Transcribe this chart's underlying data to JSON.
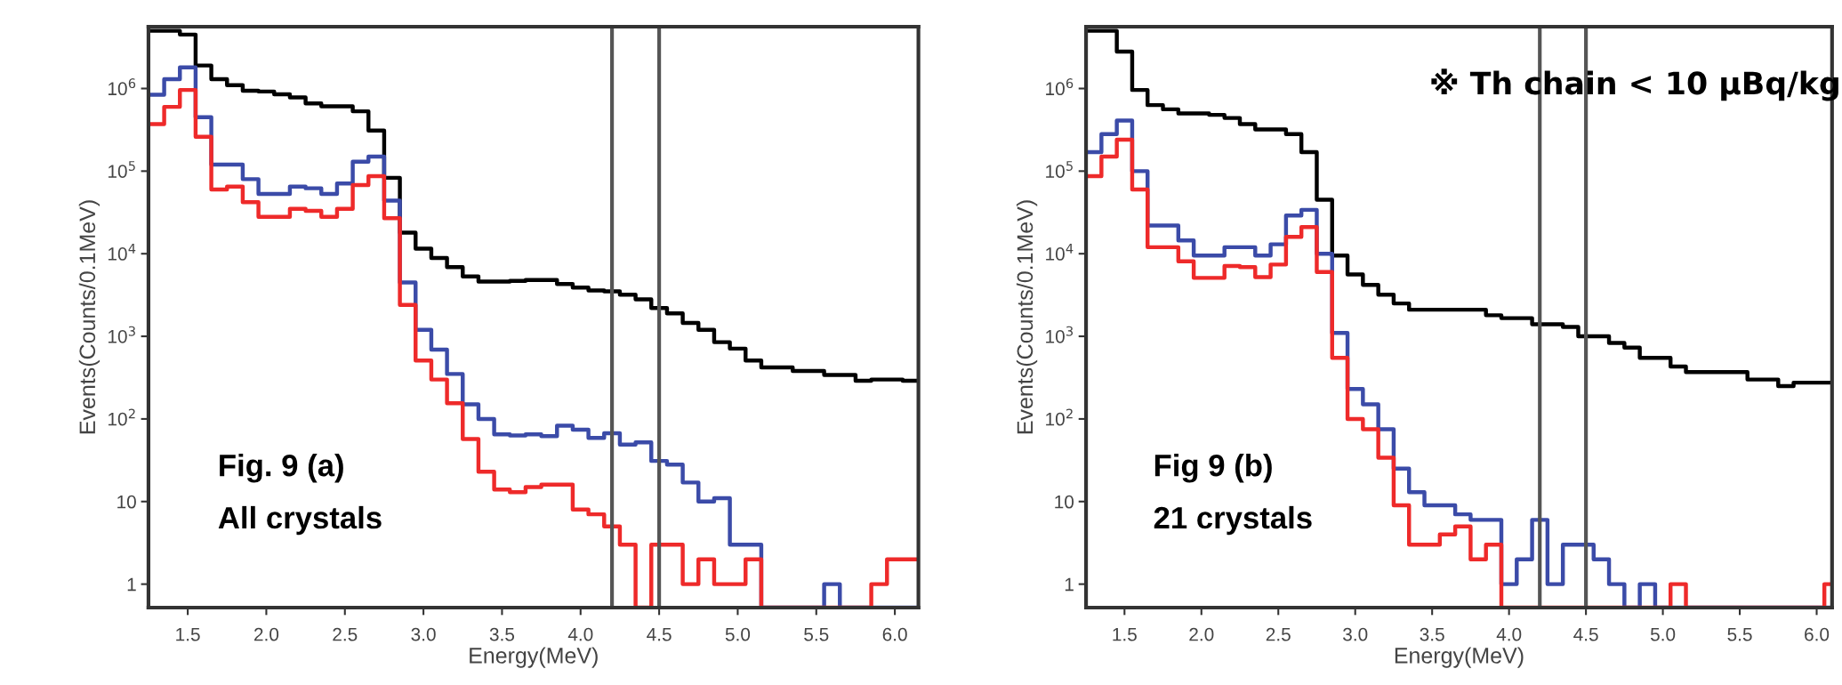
{
  "chart_data": [
    {
      "type": "histogram",
      "xlabel": "Energy(MeV)",
      "ylabel": "Events(Counts/0.1MeV)",
      "log": "y",
      "grid": false,
      "bins": [
        1.25,
        1.35,
        1.45,
        1.55,
        1.65,
        1.75,
        1.85,
        1.95,
        2.05,
        2.15,
        2.25,
        2.35,
        2.45,
        2.55,
        2.65,
        2.75,
        2.85,
        2.95,
        3.05,
        3.15,
        3.25,
        3.35,
        3.45,
        3.55,
        3.65,
        3.75,
        3.85,
        3.95,
        4.05,
        4.15,
        4.25,
        4.35,
        4.45,
        4.55,
        4.65,
        4.75,
        4.85,
        4.95,
        5.05,
        5.15,
        5.25,
        5.35,
        5.45,
        5.55,
        5.65,
        5.75,
        5.85,
        5.95,
        6.05,
        6.15
      ],
      "series": [
        {
          "color": "#000000",
          "values": [
            5000000.0,
            5000000.0,
            4500000.0,
            1900000.0,
            1300000.0,
            1100000.0,
            940000.0,
            920000.0,
            850000.0,
            780000.0,
            660000.0,
            610000.0,
            610000.0,
            530000.0,
            310000.0,
            83000.0,
            18000.0,
            11500.0,
            8900.0,
            6900.0,
            5300.0,
            4600.0,
            4600.0,
            4700.0,
            4800.0,
            4800.0,
            4300.0,
            3900.0,
            3600.0,
            3500.0,
            3200.0,
            2800.0,
            2200.0,
            1900.0,
            1450.0,
            1200.0,
            850,
            710,
            510,
            420,
            420,
            380,
            380,
            340,
            340,
            290,
            300,
            300,
            290
          ]
        },
        {
          "color": "#3b4ba8",
          "values": [
            840000.0,
            1300000.0,
            1800000.0,
            450000.0,
            120000.0,
            120000.0,
            80000.0,
            53000.0,
            53000.0,
            65000.0,
            62000.0,
            53000.0,
            71000.0,
            130000.0,
            150000.0,
            44000.0,
            4500.0,
            1200.0,
            690,
            350,
            150,
            100,
            65,
            63,
            65,
            62,
            83,
            74,
            59,
            67,
            49,
            52,
            31,
            28,
            17,
            10,
            11,
            3,
            3,
            null,
            null,
            null,
            null,
            1,
            null,
            null,
            null,
            null,
            null
          ]
        },
        {
          "color": "#ee2a2a",
          "values": [
            370000.0,
            600000.0,
            960000.0,
            260000.0,
            60000.0,
            65000.0,
            42000.0,
            28000.0,
            28000.0,
            35000.0,
            33000.0,
            28000.0,
            35000.0,
            68000.0,
            87000.0,
            27000.0,
            2400.0,
            510,
            300,
            155,
            57,
            23,
            14,
            13,
            15,
            16,
            16,
            8,
            7,
            5,
            3,
            null,
            3,
            3,
            1,
            2,
            1,
            1,
            2,
            null,
            null,
            null,
            null,
            null,
            null,
            null,
            1,
            2,
            2
          ]
        }
      ],
      "xlim": [
        1.25,
        6.15
      ],
      "xticks": [
        1.5,
        {
          "value": 2,
          "label": "2.0"
        },
        2.5,
        {
          "value": 3,
          "label": "3.0"
        },
        3.5,
        {
          "value": 4,
          "label": "4.0"
        },
        4.5,
        {
          "value": 5,
          "label": "5.0"
        },
        5.5,
        {
          "value": 6,
          "label": "6.0"
        }
      ],
      "ylim": [
        0.52,
        5600000.0
      ],
      "yticks": [
        1,
        10,
        {
          "value": 100,
          "label": "10$^{2}$"
        },
        {
          "value": 1000,
          "label": "10$^{3}$"
        },
        {
          "value": 10000,
          "label": "10$^{4}$"
        },
        {
          "value": 100000,
          "label": "10$^{5}$"
        },
        {
          "value": 1000000,
          "label": "10$^{6}$"
        }
      ],
      "ref_lines": [
        {
          "axis": "x",
          "value": 4.2,
          "color": "#555555"
        },
        {
          "axis": "x",
          "value": 4.5,
          "color": "#555555"
        }
      ],
      "annotations": [
        "Fig. 9 (a)",
        "All crystals"
      ]
    },
    {
      "type": "histogram",
      "xlabel": "Energy(MeV)",
      "ylabel": "Events(Counts/0.1MeV)",
      "log": "y",
      "grid": false,
      "bins": [
        1.25,
        1.35,
        1.45,
        1.55,
        1.65,
        1.75,
        1.85,
        1.95,
        2.05,
        2.15,
        2.25,
        2.35,
        2.45,
        2.55,
        2.65,
        2.75,
        2.85,
        2.95,
        3.05,
        3.15,
        3.25,
        3.35,
        3.45,
        3.55,
        3.65,
        3.75,
        3.85,
        3.95,
        4.05,
        4.15,
        4.25,
        4.35,
        4.45,
        4.55,
        4.65,
        4.75,
        4.85,
        4.95,
        5.05,
        5.15,
        5.25,
        5.35,
        5.45,
        5.55,
        5.65,
        5.75,
        5.85,
        5.95,
        6.05,
        6.15
      ],
      "series": [
        {
          "color": "#000000",
          "values": [
            5000000.0,
            5000000.0,
            2800000.0,
            960000.0,
            630000.0,
            560000.0,
            500000.0,
            500000.0,
            480000.0,
            440000.0,
            370000.0,
            320000.0,
            320000.0,
            280000.0,
            170000.0,
            45000.0,
            9500.0,
            5600.0,
            4200.0,
            3200.0,
            2500.0,
            2100.0,
            2100.0,
            2100.0,
            2100.0,
            2100.0,
            1800.0,
            1660.0,
            1660.0,
            1400.0,
            1400.0,
            1300.0,
            1000.0,
            1000.0,
            830,
            730,
            550,
            550,
            430,
            370,
            370,
            370,
            370,
            300,
            300,
            250,
            275,
            275,
            275
          ]
        },
        {
          "color": "#3b4ba8",
          "values": [
            170000.0,
            280000.0,
            410000.0,
            100000.0,
            22000.0,
            22000.0,
            14500.0,
            9500.0,
            9500.0,
            12000.0,
            12000.0,
            9500.0,
            13000.0,
            29000.0,
            34000.0,
            10000.0,
            1100.0,
            230,
            150,
            75,
            25,
            13,
            9,
            9,
            7,
            6,
            6,
            1,
            2,
            6,
            1,
            3,
            3,
            2,
            1,
            null,
            1,
            null,
            null,
            null,
            null,
            null,
            null,
            null,
            null,
            null,
            null,
            null,
            null
          ]
        },
        {
          "color": "#ee2a2a",
          "values": [
            87000.0,
            150000.0,
            240000.0,
            60000.0,
            12000.0,
            12000.0,
            8100.0,
            5100.0,
            5100.0,
            7100.0,
            6900.0,
            5200.0,
            7400.0,
            16000.0,
            21000.0,
            6000.0,
            550,
            100,
            75,
            34,
            9,
            3,
            3,
            4,
            5,
            2,
            3,
            null,
            null,
            null,
            null,
            null,
            null,
            null,
            null,
            null,
            null,
            null,
            1,
            null,
            null,
            null,
            null,
            null,
            null,
            null,
            null,
            null,
            1
          ]
        }
      ],
      "xlim": [
        1.25,
        6.1
      ],
      "xticks": [
        1.5,
        {
          "value": 2,
          "label": "2.0"
        },
        2.5,
        {
          "value": 3,
          "label": "3.0"
        },
        3.5,
        {
          "value": 4,
          "label": "4.0"
        },
        4.5,
        {
          "value": 5,
          "label": "5.0"
        },
        5.5,
        {
          "value": 6,
          "label": "6.0"
        }
      ],
      "ylim": [
        0.52,
        5600000.0
      ],
      "yticks": [
        1,
        10,
        {
          "value": 100,
          "label": "10$^{2}$"
        },
        {
          "value": 1000,
          "label": "10$^{3}$"
        },
        {
          "value": 10000,
          "label": "10$^{4}$"
        },
        {
          "value": 100000,
          "label": "10$^{5}$"
        },
        {
          "value": 1000000,
          "label": "10$^{6}$"
        }
      ],
      "ref_lines": [
        {
          "axis": "x",
          "value": 4.2,
          "color": "#555555"
        },
        {
          "axis": "x",
          "value": 4.5,
          "color": "#555555"
        }
      ],
      "annotations": [
        "※ Th chain < 10 μBq/kg",
        "Fig 9 (b)",
        "21 crystals"
      ]
    }
  ]
}
